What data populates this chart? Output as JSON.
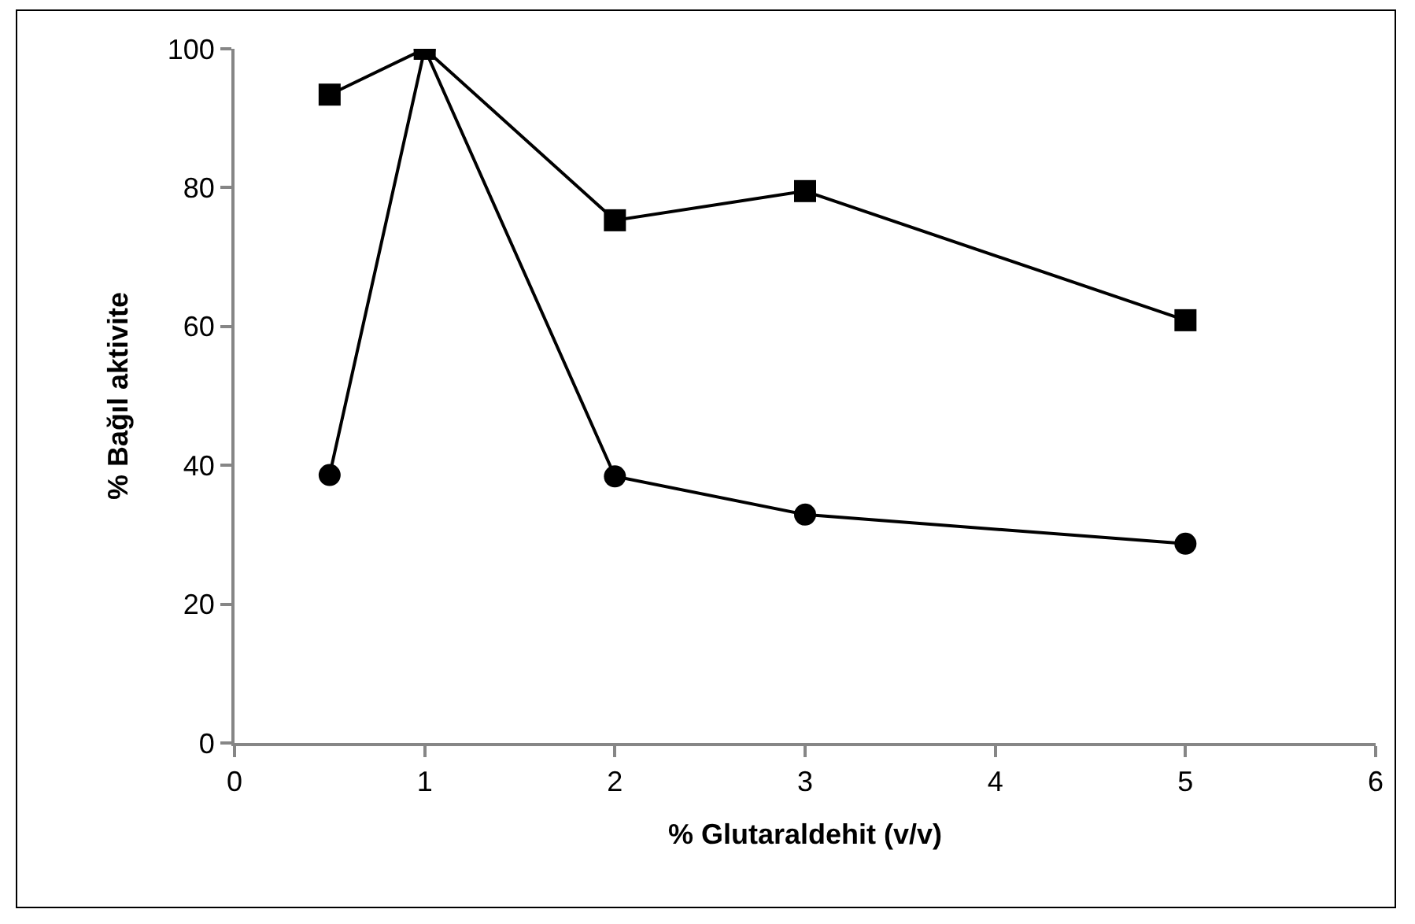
{
  "chart_data": {
    "type": "line",
    "xlabel": "% Glutaraldehit (v/v)",
    "ylabel": "% Bağıl aktivite",
    "x": [
      0.5,
      1,
      2,
      3,
      5
    ],
    "series": [
      {
        "color": "#000000",
        "marker": "circle",
        "values": [
          38.6,
          100,
          38.4,
          32.9,
          28.7
        ]
      },
      {
        "color": "#000000",
        "marker": "square",
        "values": [
          93.4,
          100,
          75.3,
          79.5,
          60.9
        ]
      }
    ],
    "xlim": [
      0,
      6
    ],
    "xticks": [
      0,
      1,
      2,
      3,
      4,
      5,
      6
    ],
    "ylim": [
      0,
      100
    ],
    "yticks": [
      0,
      20,
      40,
      60,
      80,
      100
    ],
    "line_style": "solid"
  }
}
